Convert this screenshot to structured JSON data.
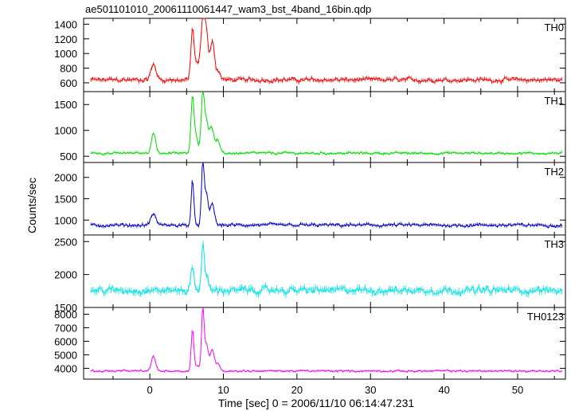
{
  "chart_data": {
    "type": "line",
    "title": "ae501101010_20061110061447_wam3_bst_4band_16bin.qdp",
    "xlabel": "Time [sec] 0 = 2006/11/10 06:14:47.231",
    "ylabel": "Counts/sec",
    "xlim": [
      -9,
      56.5
    ],
    "x_ticks": [
      0,
      10,
      20,
      30,
      40,
      50
    ],
    "x_tick_labels": [
      "0",
      "10",
      "20",
      "30",
      "40",
      "50"
    ],
    "grid": false,
    "panels": [
      {
        "name": "TH0",
        "color": "#ff0000",
        "ylim": [
          480,
          1480
        ],
        "y_ticks": [
          600,
          800,
          1000,
          1200,
          1400
        ],
        "y_tick_labels": [
          "600",
          "800",
          "1000",
          "1200",
          "1400"
        ],
        "baseline": 640,
        "noise": 45,
        "peaks": [
          {
            "t": 0.5,
            "amp": 210,
            "w": 0.5
          },
          {
            "t": 5.8,
            "amp": 680,
            "w": 0.3
          },
          {
            "t": 6.4,
            "amp": 200,
            "w": 0.4
          },
          {
            "t": 7.2,
            "amp": 780,
            "w": 0.4
          },
          {
            "t": 7.7,
            "amp": 560,
            "w": 0.35
          },
          {
            "t": 8.5,
            "amp": 540,
            "w": 0.4
          },
          {
            "t": 9.3,
            "amp": 120,
            "w": 0.4
          }
        ]
      },
      {
        "name": "TH1",
        "color": "#00dd00",
        "ylim": [
          380,
          1750
        ],
        "y_ticks": [
          500,
          1000,
          1500
        ],
        "y_tick_labels": [
          "500",
          "1000",
          "1500"
        ],
        "baseline": 560,
        "noise": 35,
        "peaks": [
          {
            "t": 0.5,
            "amp": 400,
            "w": 0.4
          },
          {
            "t": 5.8,
            "amp": 1050,
            "w": 0.3
          },
          {
            "t": 6.3,
            "amp": 300,
            "w": 0.4
          },
          {
            "t": 7.2,
            "amp": 1150,
            "w": 0.3
          },
          {
            "t": 7.7,
            "amp": 600,
            "w": 0.35
          },
          {
            "t": 8.4,
            "amp": 500,
            "w": 0.4
          },
          {
            "t": 9.2,
            "amp": 250,
            "w": 0.4
          }
        ]
      },
      {
        "name": "TH2",
        "color": "#0000cc",
        "ylim": [
          650,
          2350
        ],
        "y_ticks": [
          1000,
          1500,
          2000
        ],
        "y_tick_labels": [
          "1000",
          "1500",
          "2000"
        ],
        "baseline": 880,
        "noise": 60,
        "peaks": [
          {
            "t": 0.5,
            "amp": 260,
            "w": 0.5
          },
          {
            "t": 5.8,
            "amp": 1050,
            "w": 0.25
          },
          {
            "t": 7.2,
            "amp": 1450,
            "w": 0.25
          },
          {
            "t": 7.7,
            "amp": 700,
            "w": 0.35
          },
          {
            "t": 8.5,
            "amp": 500,
            "w": 0.4
          }
        ]
      },
      {
        "name": "TH3",
        "color": "#00e5e5",
        "ylim": [
          1500,
          2600
        ],
        "y_ticks": [
          1500,
          2000,
          2500
        ],
        "y_tick_labels": [
          "1500",
          "2000",
          "2500"
        ],
        "baseline": 1760,
        "noise": 80,
        "peaks": [
          {
            "t": 5.8,
            "amp": 350,
            "w": 0.3
          },
          {
            "t": 7.2,
            "amp": 700,
            "w": 0.25
          },
          {
            "t": 7.7,
            "amp": 200,
            "w": 0.4
          }
        ]
      },
      {
        "name": "TH0123",
        "color": "#ff00ff",
        "ylim": [
          3200,
          8500
        ],
        "y_ticks": [
          4000,
          5000,
          6000,
          7000,
          8000
        ],
        "y_tick_labels": [
          "4000",
          "5000",
          "6000",
          "7000",
          "8000"
        ],
        "baseline": 3800,
        "noise": 110,
        "peaks": [
          {
            "t": 0.5,
            "amp": 1100,
            "w": 0.4
          },
          {
            "t": 5.8,
            "amp": 3100,
            "w": 0.25
          },
          {
            "t": 6.4,
            "amp": 400,
            "w": 0.4
          },
          {
            "t": 7.2,
            "amp": 4500,
            "w": 0.25
          },
          {
            "t": 7.7,
            "amp": 1900,
            "w": 0.35
          },
          {
            "t": 8.5,
            "amp": 1600,
            "w": 0.4
          },
          {
            "t": 9.3,
            "amp": 500,
            "w": 0.4
          }
        ]
      }
    ]
  }
}
